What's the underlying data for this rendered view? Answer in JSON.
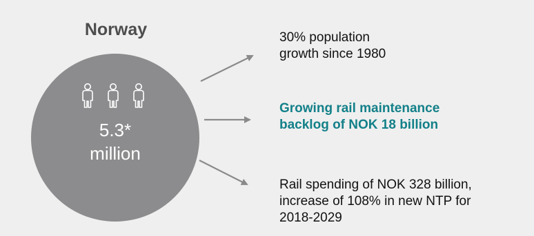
{
  "diagram": {
    "title": "Norway",
    "people_icon": "person-outline-icon",
    "population_value": "5.3*",
    "population_unit": "million",
    "colors": {
      "background": "#efefef",
      "circle": "#8c8c8e",
      "title": "#4d4d4d",
      "highlight": "#138089",
      "arrow": "#8a8a8a"
    },
    "outcomes": [
      {
        "text": "30% population\ngrowth since 1980",
        "highlight": false
      },
      {
        "text": "Growing rail maintenance\nbacklog of NOK 18 billion",
        "highlight": true
      },
      {
        "text": "Rail spending of NOK 328 billion,\nincrease of 108% in new NTP for\n2018-2029",
        "highlight": false
      }
    ]
  }
}
